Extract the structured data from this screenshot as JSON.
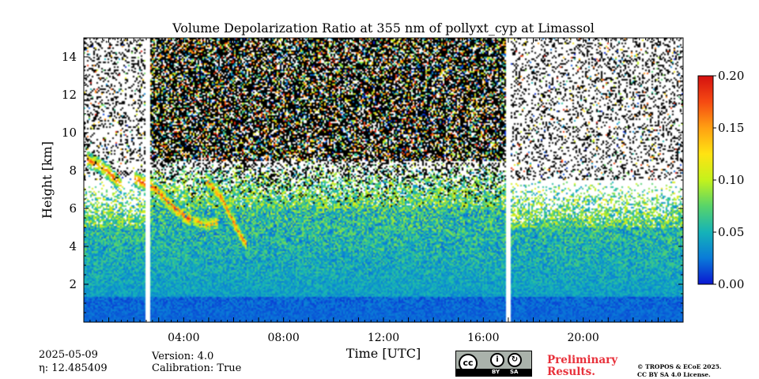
{
  "chart_data": {
    "type": "heatmap",
    "title": "Volume Depolarization Ratio at 355 nm of pollyxt_cyp at Limassol",
    "xlabel": "Time [UTC]",
    "ylabel": "Height [km]",
    "xlim": [
      0,
      24
    ],
    "ylim": [
      0,
      15
    ],
    "x_ticks": [
      {
        "value": 4,
        "label": "04:00"
      },
      {
        "value": 8,
        "label": "08:00"
      },
      {
        "value": 12,
        "label": "12:00"
      },
      {
        "value": 16,
        "label": "16:00"
      },
      {
        "value": 20,
        "label": "20:00"
      }
    ],
    "y_ticks": [
      {
        "value": 2,
        "label": "2"
      },
      {
        "value": 4,
        "label": "4"
      },
      {
        "value": 6,
        "label": "6"
      },
      {
        "value": 8,
        "label": "8"
      },
      {
        "value": 10,
        "label": "10"
      },
      {
        "value": 12,
        "label": "12"
      },
      {
        "value": 14,
        "label": "14"
      }
    ],
    "colorbar": {
      "range": [
        0,
        0.2
      ],
      "ticks": [
        "0.00",
        "0.05",
        "0.10",
        "0.15",
        "0.20"
      ],
      "colormap": [
        "#0a16d2",
        "#0a7bd8",
        "#15b3b8",
        "#58d46a",
        "#c4f21c",
        "#ffe312",
        "#ffa012",
        "#f54a12",
        "#d41010"
      ]
    },
    "data_gaps": [
      [
        2.45,
        2.65
      ],
      [
        16.9,
        17.1
      ]
    ],
    "noisy_signal_period": [
      2.65,
      16.9
    ],
    "layers": [
      {
        "x": [
          0.1,
          0.6,
          1.0,
          1.5
        ],
        "y": [
          8.6,
          8.3,
          7.9,
          7.2
        ],
        "value": 0.16
      },
      {
        "x": [
          2.0,
          2.8,
          3.4,
          3.9,
          4.3
        ],
        "y": [
          7.6,
          7.1,
          6.3,
          5.7,
          5.4
        ],
        "value": 0.17
      },
      {
        "x": [
          4.4,
          4.9,
          5.4
        ],
        "y": [
          5.4,
          5.1,
          5.3
        ],
        "value": 0.14
      },
      {
        "x": [
          4.9,
          5.5,
          6.0,
          6.3,
          6.5
        ],
        "y": [
          7.5,
          6.6,
          5.3,
          4.5,
          4.1
        ],
        "value": 0.16
      }
    ]
  },
  "footer": {
    "date": "2025-05-09",
    "eta": "η: 12.485409",
    "version": "Version: 4.0",
    "calibration": "Calibration: True",
    "license_badge": {
      "cc": "cc",
      "by": "BY",
      "sa": "SA"
    },
    "preliminary_line1": "Preliminary",
    "preliminary_line2": "Results.",
    "copyright_line1": "© TROPOS & ECoE 2025.",
    "copyright_line2": "CC BY SA 4.0 License."
  }
}
